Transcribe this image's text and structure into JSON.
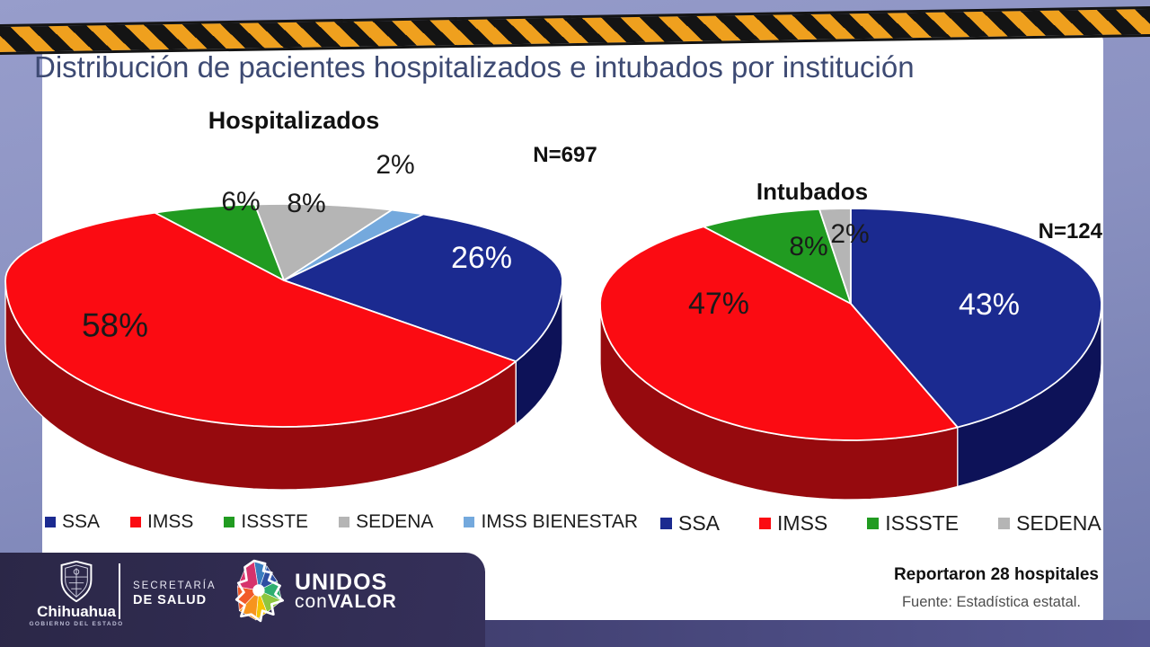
{
  "page_title": "Distribución de pacientes hospitalizados e intubados por institución",
  "chart_data": [
    {
      "type": "pie",
      "style": "3d",
      "title": "Hospitalizados",
      "n": 697,
      "sample_size_label": "N=697",
      "legend_position": "bottom",
      "slices": [
        {
          "label": "SEDENA",
          "value": 8,
          "display": "8%",
          "color": "#b5b5b5",
          "side_color": "#8f8f8f",
          "label_color": "#1a1a1a"
        },
        {
          "label": "IMSS BIENESTAR",
          "value": 2,
          "display": "2%",
          "color": "#74a9dd",
          "side_color": "#4f7fb3",
          "label_color": "#1a1a1a"
        },
        {
          "label": "SSA",
          "value": 26,
          "display": "26%",
          "color": "#1b2a90",
          "side_color": "#0d1258",
          "label_color": "#ffffff"
        },
        {
          "label": "IMSS",
          "value": 58,
          "display": "58%",
          "color": "#fb0b12",
          "side_color": "#960a0e",
          "label_color": "#1a1a1a"
        },
        {
          "label": "ISSSTE",
          "value": 6,
          "display": "6%",
          "color": "#219b21",
          "side_color": "#156615",
          "label_color": "#1a1a1a"
        }
      ],
      "legend": [
        "SSA",
        "IMSS",
        "ISSSTE",
        "SEDENA",
        "IMSS BIENESTAR"
      ]
    },
    {
      "type": "pie",
      "style": "3d",
      "title": "Intubados",
      "n": 124,
      "sample_size_label": "N=124",
      "legend_position": "bottom",
      "slices": [
        {
          "label": "ISSSTE",
          "value": 8,
          "display": "8%",
          "color": "#219b21",
          "side_color": "#156615",
          "label_color": "#1a1a1a"
        },
        {
          "label": "SEDENA",
          "value": 2,
          "display": "2%",
          "color": "#b5b5b5",
          "side_color": "#8f8f8f",
          "label_color": "#1a1a1a"
        },
        {
          "label": "SSA",
          "value": 43,
          "display": "43%",
          "color": "#1b2a90",
          "side_color": "#0d1258",
          "label_color": "#ffffff"
        },
        {
          "label": "IMSS",
          "value": 47,
          "display": "47%",
          "color": "#fb0b12",
          "side_color": "#960a0e",
          "label_color": "#1a1a1a"
        }
      ],
      "legend": [
        "SSA",
        "IMSS",
        "ISSSTE",
        "SEDENA"
      ]
    }
  ],
  "footer": {
    "logo_chihuahua_name": "Chihuahua",
    "logo_chihuahua_subtitle": "GOBIERNO DEL ESTADO",
    "secretaria_line1": "SECRETARÍA",
    "secretaria_line2": "DE SALUD",
    "unidos_line1": "UNIDOS",
    "unidos_line2_light": "con",
    "unidos_line2_bold": "VALOR",
    "reported": "Reportaron 28 hospitales",
    "source": "Fuente: Estadística estatal."
  },
  "colors": {
    "background": "#8a91c1",
    "hazard_orange": "#efa01e",
    "hazard_black": "#141414",
    "title_text": "#3d4a73",
    "footer_panel": "#302b4f",
    "bottom_bar": "#454374"
  }
}
